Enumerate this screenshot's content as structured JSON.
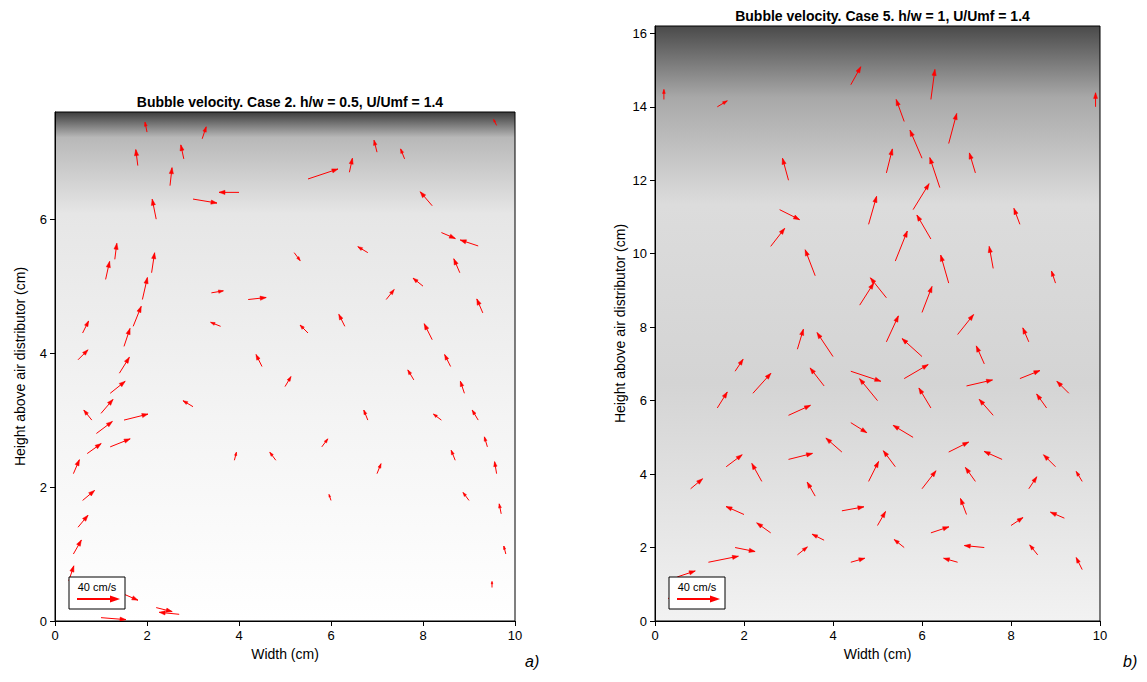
{
  "chart_data": [
    {
      "type": "quiver",
      "title": "Bubble velocity. Case 2. h/w = 0.5, U/Umf = 1.4",
      "x_label": "Width (cm)",
      "y_label": "Height above air distributor (cm)",
      "xlim": [
        0,
        10
      ],
      "xticks": [
        0,
        2,
        4,
        6,
        8,
        10
      ],
      "ylim": [
        0,
        7.6
      ],
      "yticks": [
        0,
        2,
        4,
        6
      ],
      "color": "#ff0000",
      "key": {
        "label": "40 cm/s",
        "value": 40
      },
      "annotations": [
        "a)"
      ],
      "vectors": [
        [
          0.3,
          0.6,
          5,
          15
        ],
        [
          0.4,
          1.0,
          8,
          14
        ],
        [
          0.5,
          1.4,
          10,
          12
        ],
        [
          0.6,
          1.8,
          12,
          10
        ],
        [
          0.4,
          2.2,
          6,
          14
        ],
        [
          0.7,
          2.5,
          14,
          10
        ],
        [
          0.9,
          2.8,
          16,
          12
        ],
        [
          1.0,
          3.1,
          12,
          14
        ],
        [
          1.2,
          3.4,
          15,
          12
        ],
        [
          0.8,
          3.0,
          -8,
          10
        ],
        [
          1.4,
          3.7,
          10,
          16
        ],
        [
          1.5,
          4.1,
          6,
          18
        ],
        [
          1.7,
          4.4,
          8,
          20
        ],
        [
          1.9,
          4.8,
          5,
          22
        ],
        [
          2.1,
          5.2,
          3,
          20
        ],
        [
          1.2,
          2.6,
          20,
          8
        ],
        [
          1.5,
          3.0,
          24,
          6
        ],
        [
          0.5,
          3.9,
          10,
          10
        ],
        [
          0.6,
          4.3,
          6,
          12
        ],
        [
          1.1,
          5.1,
          4,
          18
        ],
        [
          1.3,
          5.4,
          2,
          16
        ],
        [
          2.2,
          6.0,
          -4,
          20
        ],
        [
          2.5,
          6.5,
          2,
          18
        ],
        [
          2.8,
          6.9,
          -3,
          14
        ],
        [
          3.2,
          7.2,
          4,
          12
        ],
        [
          1.8,
          6.8,
          -2,
          16
        ],
        [
          3.0,
          6.3,
          24,
          -4
        ],
        [
          4.0,
          6.4,
          -20,
          0
        ],
        [
          5.5,
          6.6,
          30,
          10
        ],
        [
          6.4,
          6.7,
          3,
          14
        ],
        [
          7.0,
          7.0,
          -3,
          12
        ],
        [
          7.6,
          6.9,
          -4,
          10
        ],
        [
          8.2,
          6.2,
          -12,
          14
        ],
        [
          8.4,
          5.8,
          14,
          -6
        ],
        [
          9.2,
          5.6,
          -18,
          6
        ],
        [
          8.8,
          5.2,
          -6,
          14
        ],
        [
          9.6,
          7.4,
          -3,
          6
        ],
        [
          2.0,
          7.3,
          -2,
          10
        ],
        [
          3.4,
          4.9,
          12,
          2
        ],
        [
          4.2,
          4.8,
          18,
          2
        ],
        [
          3.6,
          4.4,
          -10,
          4
        ],
        [
          4.5,
          3.8,
          -6,
          12
        ],
        [
          5.0,
          3.5,
          6,
          10
        ],
        [
          5.5,
          4.3,
          -8,
          8
        ],
        [
          6.3,
          4.4,
          -6,
          12
        ],
        [
          6.8,
          3.0,
          -4,
          10
        ],
        [
          5.8,
          2.6,
          6,
          8
        ],
        [
          4.8,
          2.4,
          -6,
          8
        ],
        [
          3.9,
          2.4,
          2,
          8
        ],
        [
          7.0,
          2.2,
          4,
          10
        ],
        [
          6.0,
          1.8,
          -2,
          6
        ],
        [
          3.0,
          3.2,
          -10,
          6
        ],
        [
          7.2,
          4.8,
          8,
          10
        ],
        [
          6.8,
          5.5,
          -10,
          6
        ],
        [
          5.2,
          5.5,
          6,
          -8
        ],
        [
          8.2,
          4.2,
          -8,
          16
        ],
        [
          8.6,
          3.8,
          -6,
          12
        ],
        [
          8.9,
          3.4,
          -4,
          12
        ],
        [
          9.2,
          3.0,
          -6,
          10
        ],
        [
          9.4,
          2.6,
          -3,
          10
        ],
        [
          9.6,
          2.2,
          -2,
          12
        ],
        [
          9.7,
          1.6,
          -2,
          10
        ],
        [
          9.8,
          1.0,
          -2,
          8
        ],
        [
          8.7,
          2.4,
          -4,
          10
        ],
        [
          9.0,
          1.8,
          -6,
          8
        ],
        [
          8.4,
          3.0,
          -8,
          6
        ],
        [
          9.3,
          4.6,
          -6,
          14
        ],
        [
          7.8,
          3.6,
          -6,
          10
        ],
        [
          8.0,
          5.0,
          -10,
          8
        ],
        [
          9.5,
          0.5,
          0,
          6
        ],
        [
          1.5,
          0.4,
          14,
          -6
        ],
        [
          2.2,
          0.2,
          16,
          -4
        ],
        [
          2.7,
          0.1,
          -20,
          2
        ],
        [
          1.0,
          0.05,
          25,
          -2
        ]
      ]
    },
    {
      "type": "quiver",
      "title": "Bubble velocity. Case 5. h/w = 1, U/Umf = 1.4",
      "x_label": "Width (cm)",
      "y_label": "Height above air distributor (cm)",
      "xlim": [
        0,
        10
      ],
      "xticks": [
        0,
        2,
        4,
        6,
        8,
        10
      ],
      "ylim": [
        0,
        16.2
      ],
      "yticks": [
        0,
        2,
        4,
        6,
        8,
        10,
        12,
        14,
        16
      ],
      "color": "#ff0000",
      "key": {
        "label": "40 cm/s",
        "value": 40
      },
      "annotations": [
        "b)"
      ],
      "vectors": [
        [
          0.3,
          0.6,
          10,
          14
        ],
        [
          0.5,
          1.2,
          18,
          6
        ],
        [
          1.2,
          1.6,
          30,
          6
        ],
        [
          1.8,
          2.0,
          20,
          -4
        ],
        [
          2.6,
          2.4,
          -14,
          10
        ],
        [
          3.2,
          1.8,
          10,
          8
        ],
        [
          3.8,
          2.2,
          -12,
          6
        ],
        [
          4.4,
          1.6,
          14,
          4
        ],
        [
          5.0,
          2.6,
          8,
          14
        ],
        [
          5.6,
          2.0,
          -10,
          8
        ],
        [
          6.2,
          2.4,
          18,
          6
        ],
        [
          6.8,
          1.6,
          -14,
          4
        ],
        [
          7.4,
          2.0,
          -20,
          2
        ],
        [
          8.0,
          2.6,
          12,
          8
        ],
        [
          8.6,
          1.8,
          -8,
          10
        ],
        [
          9.2,
          2.8,
          -14,
          6
        ],
        [
          9.6,
          1.4,
          -6,
          12
        ],
        [
          2.0,
          2.9,
          -18,
          8
        ],
        [
          4.2,
          3.0,
          22,
          4
        ],
        [
          7.0,
          2.9,
          -6,
          16
        ],
        [
          0.8,
          3.6,
          12,
          10
        ],
        [
          1.6,
          4.2,
          16,
          12
        ],
        [
          2.4,
          3.8,
          -10,
          18
        ],
        [
          3.0,
          4.4,
          24,
          6
        ],
        [
          3.6,
          3.4,
          -8,
          14
        ],
        [
          4.2,
          4.6,
          -16,
          14
        ],
        [
          4.8,
          3.8,
          10,
          20
        ],
        [
          5.4,
          4.2,
          -12,
          16
        ],
        [
          6.0,
          3.6,
          14,
          18
        ],
        [
          6.6,
          4.6,
          20,
          10
        ],
        [
          7.2,
          3.8,
          -10,
          14
        ],
        [
          7.8,
          4.4,
          -18,
          8
        ],
        [
          8.4,
          3.6,
          8,
          12
        ],
        [
          9.0,
          4.2,
          -12,
          12
        ],
        [
          9.6,
          3.8,
          -6,
          10
        ],
        [
          5.8,
          5.0,
          -20,
          12
        ],
        [
          4.4,
          5.4,
          16,
          -10
        ],
        [
          1.4,
          5.8,
          10,
          16
        ],
        [
          2.2,
          6.2,
          18,
          20
        ],
        [
          3.0,
          5.6,
          22,
          10
        ],
        [
          3.8,
          6.4,
          -14,
          18
        ],
        [
          4.4,
          6.8,
          30,
          -10
        ],
        [
          5.0,
          6.0,
          -18,
          22
        ],
        [
          5.6,
          6.6,
          24,
          14
        ],
        [
          6.2,
          5.8,
          -12,
          20
        ],
        [
          7.0,
          6.4,
          26,
          6
        ],
        [
          7.6,
          5.6,
          -14,
          16
        ],
        [
          8.2,
          6.6,
          20,
          8
        ],
        [
          8.8,
          5.8,
          -10,
          14
        ],
        [
          9.3,
          6.2,
          -12,
          12
        ],
        [
          4.0,
          7.2,
          -16,
          24
        ],
        [
          5.2,
          7.6,
          12,
          26
        ],
        [
          6.0,
          7.2,
          -20,
          18
        ],
        [
          6.8,
          7.8,
          16,
          20
        ],
        [
          7.4,
          7.0,
          -8,
          18
        ],
        [
          8.4,
          7.6,
          -6,
          14
        ],
        [
          3.2,
          7.4,
          6,
          20
        ],
        [
          1.8,
          6.8,
          8,
          12
        ],
        [
          4.6,
          8.6,
          14,
          22
        ],
        [
          5.2,
          8.8,
          -16,
          20
        ],
        [
          6.0,
          8.4,
          10,
          26
        ],
        [
          6.6,
          9.2,
          -8,
          28
        ],
        [
          3.6,
          9.4,
          -10,
          26
        ],
        [
          5.4,
          9.8,
          12,
          30
        ],
        [
          6.2,
          10.4,
          -14,
          24
        ],
        [
          4.8,
          10.8,
          8,
          28
        ],
        [
          5.8,
          11.2,
          16,
          26
        ],
        [
          6.4,
          11.8,
          -10,
          30
        ],
        [
          5.2,
          12.2,
          6,
          24
        ],
        [
          6.0,
          12.6,
          -12,
          28
        ],
        [
          6.6,
          13.0,
          8,
          30
        ],
        [
          5.6,
          13.6,
          -8,
          22
        ],
        [
          6.2,
          14.2,
          4,
          30
        ],
        [
          4.4,
          14.6,
          10,
          18
        ],
        [
          3.0,
          12.0,
          -6,
          22
        ],
        [
          2.6,
          10.2,
          14,
          18
        ],
        [
          7.6,
          9.6,
          -4,
          22
        ],
        [
          8.2,
          10.8,
          -6,
          16
        ],
        [
          9.0,
          9.2,
          -4,
          12
        ],
        [
          7.2,
          12.2,
          -6,
          20
        ],
        [
          2.8,
          11.2,
          20,
          -10
        ],
        [
          9.9,
          14.0,
          0,
          14
        ],
        [
          0.2,
          14.2,
          0,
          10
        ],
        [
          1.4,
          14.0,
          10,
          6
        ]
      ]
    }
  ]
}
